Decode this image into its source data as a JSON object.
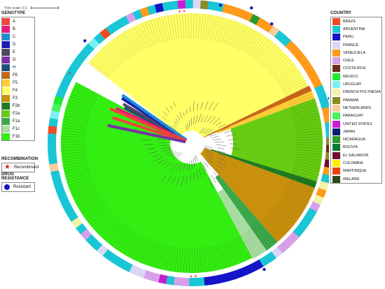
{
  "scale": {
    "label": "Tree scale: 0.1"
  },
  "genotype_legend": {
    "title": "GENOTYPE",
    "items": [
      {
        "label": "A",
        "color": "#f0453a"
      },
      {
        "label": "B",
        "color": "#e8187a"
      },
      {
        "label": "C",
        "color": "#1b8fd6"
      },
      {
        "label": "D",
        "color": "#1a1ab8"
      },
      {
        "label": "E",
        "color": "#4a4a5a"
      },
      {
        "label": "G",
        "color": "#7b2fa8"
      },
      {
        "label": "H",
        "color": "#1f4e79"
      },
      {
        "label": "F6",
        "color": "#c8661a"
      },
      {
        "label": "F5",
        "color": "#ffcc33"
      },
      {
        "label": "F4",
        "color": "#ffff66"
      },
      {
        "label": "F3",
        "color": "#c8900c"
      },
      {
        "label": "F2b",
        "color": "#1e7a1e"
      },
      {
        "label": "F2a",
        "color": "#66cc11"
      },
      {
        "label": "F1a",
        "color": "#3aa84a"
      },
      {
        "label": "F1c",
        "color": "#a8dca0"
      },
      {
        "label": "F1b",
        "color": "#33ee11"
      }
    ]
  },
  "recombination_legend": {
    "title": "RECOMBINATION",
    "label": "Recombinant",
    "icon": "star-icon"
  },
  "drug_legend": {
    "title": "DRUG RESISTANCE",
    "label": "Resistant",
    "icon": "dot-icon"
  },
  "country_legend": {
    "title": "COUNTRY",
    "items": [
      {
        "label": "BRAZIL",
        "color": "#f04a23"
      },
      {
        "label": "ARGENTINA",
        "color": "#19c6d6"
      },
      {
        "label": "PERU",
        "color": "#1414c8"
      },
      {
        "label": "FRANCE",
        "color": "#d8d8f4"
      },
      {
        "label": "VENEZUELA",
        "color": "#ff9a1a"
      },
      {
        "label": "CHILE",
        "color": "#d6a0e8"
      },
      {
        "label": "COSTA RICA",
        "color": "#6b2c14"
      },
      {
        "label": "MEXICO",
        "color": "#1eea2e"
      },
      {
        "label": "URUGUAY",
        "color": "#7bf0f4"
      },
      {
        "label": "FRENCH POLYNESIA",
        "color": "#f2f2a8"
      },
      {
        "label": "PANAMA",
        "color": "#8a8a22"
      },
      {
        "label": "NETHERLANDS",
        "color": "#f8cc9a"
      },
      {
        "label": "PARAGUAY",
        "color": "#49f25e"
      },
      {
        "label": "UNITED STATES",
        "color": "#c81ed2"
      },
      {
        "label": "JAPAN",
        "color": "#0a1e6e"
      },
      {
        "label": "NICARAGUA",
        "color": "#2a9a2a"
      },
      {
        "label": "BOLIVIA",
        "color": "#0c7a2e"
      },
      {
        "label": "EL SALVADOR",
        "color": "#6e0c3a"
      },
      {
        "label": "COLOMBIA",
        "color": "#ffee00"
      },
      {
        "label": "MARTINIQUE",
        "color": "#e8420c"
      },
      {
        "label": "IRELAND",
        "color": "#2e4a14"
      }
    ]
  }
}
